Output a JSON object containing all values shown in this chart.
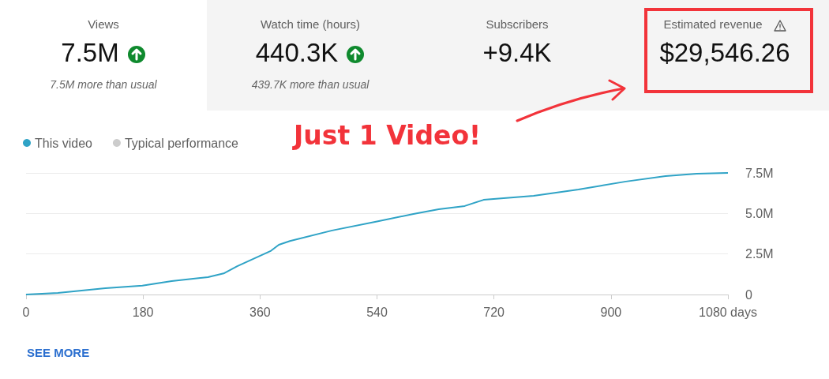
{
  "chart_data": {
    "type": "line",
    "x": [
      0,
      49,
      122,
      179,
      224,
      280,
      304,
      325,
      377,
      389,
      406,
      471,
      540,
      596,
      635,
      675,
      704,
      781,
      850,
      923,
      984,
      1032,
      1080
    ],
    "series": [
      {
        "name": "This video",
        "color": "#2fa3c6",
        "values": [
          0,
          100000,
          390000,
          550000,
          830000,
          1070000,
          1300000,
          1750000,
          2700000,
          3070000,
          3300000,
          3950000,
          4500000,
          4970000,
          5260000,
          5460000,
          5840000,
          6090000,
          6480000,
          6970000,
          7300000,
          7450000,
          7500000
        ]
      },
      {
        "name": "Typical performance",
        "color": "#cccccc",
        "values": [
          null,
          null,
          null,
          null,
          null,
          null,
          null,
          null,
          null,
          null,
          null,
          null,
          null,
          null,
          null,
          null,
          null,
          null,
          null,
          null,
          null,
          null,
          null
        ]
      }
    ],
    "xlim": [
      0,
      1080
    ],
    "xticks": [
      0,
      180,
      360,
      540,
      720,
      900,
      {
        "value": 1080,
        "label": "1080 days"
      }
    ],
    "ylim": [
      0,
      7500000
    ],
    "yticks": [
      0,
      {
        "value": 2500000,
        "label": "2.5M"
      },
      {
        "value": 5000000,
        "label": "5.0M"
      },
      {
        "value": 7500000,
        "label": "7.5M"
      }
    ],
    "grid": "y",
    "legend": "top left",
    "annotations": [
      "Views",
      "7.5M",
      "7.5M more than usual",
      "Watch time (hours)",
      "440.3K",
      "439.7K more than usual",
      "Subscribers",
      "+9.4K",
      "Estimated revenue",
      "$29,546.26",
      "Just 1 Video!",
      "SEE MORE"
    ]
  }
}
